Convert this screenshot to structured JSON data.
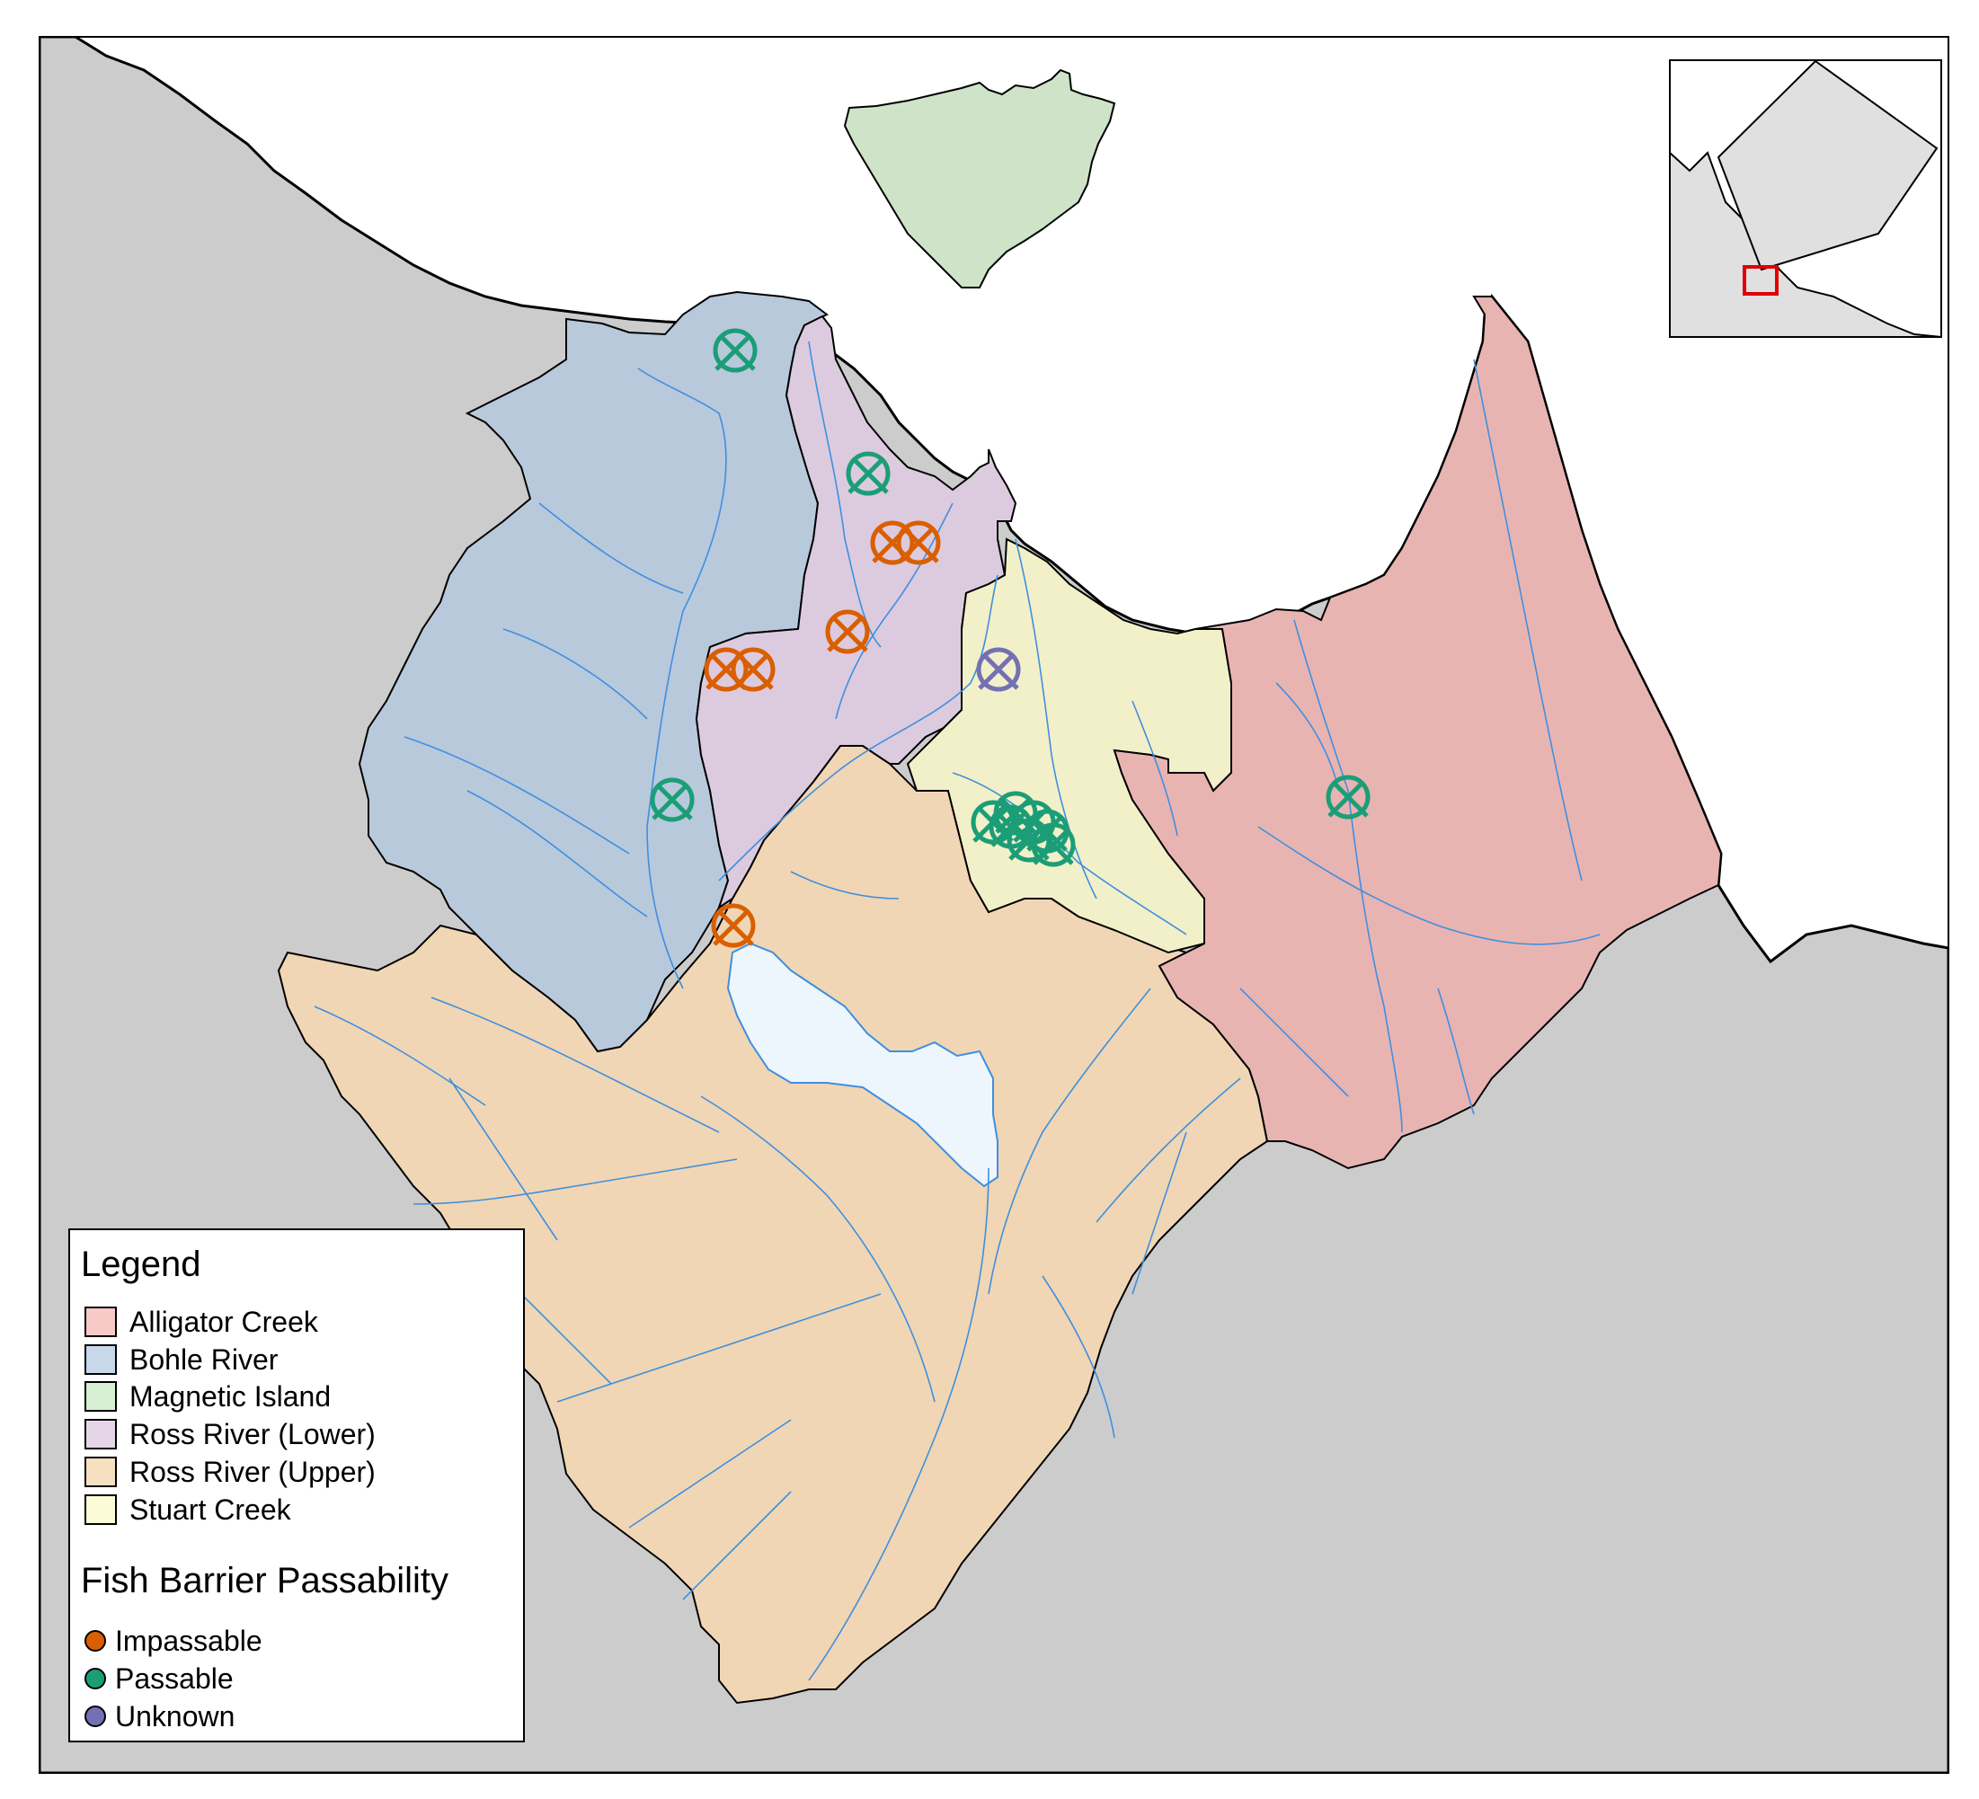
{
  "legend": {
    "title": "Legend",
    "catchments": [
      {
        "label": "Alligator Creek",
        "color": "#e8b4b2"
      },
      {
        "label": "Bohle River",
        "color": "#b8c9db"
      },
      {
        "label": "Magnetic Island",
        "color": "#cfe3c8"
      },
      {
        "label": "Ross River (Lower)",
        "color": "#dccbde"
      },
      {
        "label": "Ross River (Upper)",
        "color": "#f0d6b4"
      },
      {
        "label": "Stuart Creek",
        "color": "#f2f0c8"
      }
    ],
    "passability_title": "Fish Barrier Passability",
    "passability": [
      {
        "label": "Impassable",
        "color": "#d95f02"
      },
      {
        "label": "Passable",
        "color": "#1b9e77"
      },
      {
        "label": "Unknown",
        "color": "#7570b3"
      }
    ]
  },
  "colors": {
    "land": "#cccccc",
    "sea": "#ffffff",
    "dam": "#eef6fd",
    "streams": "#3f8fe0",
    "inset_highlight": "#e00000"
  },
  "barriers": [
    {
      "status": "Passable",
      "catchment": "Bohle River"
    },
    {
      "status": "Passable",
      "catchment": "Ross River (Lower)"
    },
    {
      "status": "Impassable",
      "catchment": "Ross River (Lower)"
    },
    {
      "status": "Impassable",
      "catchment": "Ross River (Lower)"
    },
    {
      "status": "Impassable",
      "catchment": "Ross River (Lower)"
    },
    {
      "status": "Impassable",
      "catchment": "Ross River (Lower)"
    },
    {
      "status": "Impassable",
      "catchment": "Ross River (Lower)"
    },
    {
      "status": "Unknown",
      "catchment": "Stuart Creek"
    },
    {
      "status": "Passable",
      "catchment": "Bohle River"
    },
    {
      "status": "Passable",
      "catchment": "Alligator Creek"
    },
    {
      "status": "Impassable",
      "catchment": "Ross River (Upper)"
    },
    {
      "status": "Passable",
      "catchment": "Stuart Creek"
    },
    {
      "status": "Passable",
      "catchment": "Stuart Creek"
    },
    {
      "status": "Passable",
      "catchment": "Stuart Creek"
    },
    {
      "status": "Passable",
      "catchment": "Stuart Creek"
    },
    {
      "status": "Passable",
      "catchment": "Stuart Creek"
    },
    {
      "status": "Passable",
      "catchment": "Stuart Creek"
    },
    {
      "status": "Passable",
      "catchment": "Stuart Creek"
    }
  ]
}
